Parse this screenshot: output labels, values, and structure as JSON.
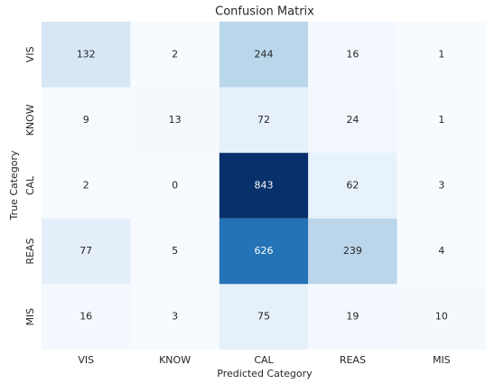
{
  "chart_data": {
    "type": "heatmap",
    "title": "Confusion Matrix",
    "x_label": "Predicted Category",
    "y_label": "True Category",
    "x_categories": [
      "VIS",
      "KNOW",
      "CAL",
      "REAS",
      "MIS"
    ],
    "y_categories": [
      "VIS",
      "KNOW",
      "CAL",
      "REAS",
      "MIS"
    ],
    "values": [
      [
        132,
        2,
        244,
        16,
        1
      ],
      [
        9,
        13,
        72,
        24,
        1
      ],
      [
        2,
        0,
        843,
        62,
        3
      ],
      [
        77,
        5,
        626,
        239,
        4
      ],
      [
        16,
        3,
        75,
        19,
        10
      ]
    ],
    "colors": [
      "#f7fbff",
      "#deebf7",
      "#c6dbef",
      "#9ecae1",
      "#6baed6",
      "#4292c6",
      "#2171b5",
      "#08519c",
      "#08306b"
    ]
  }
}
